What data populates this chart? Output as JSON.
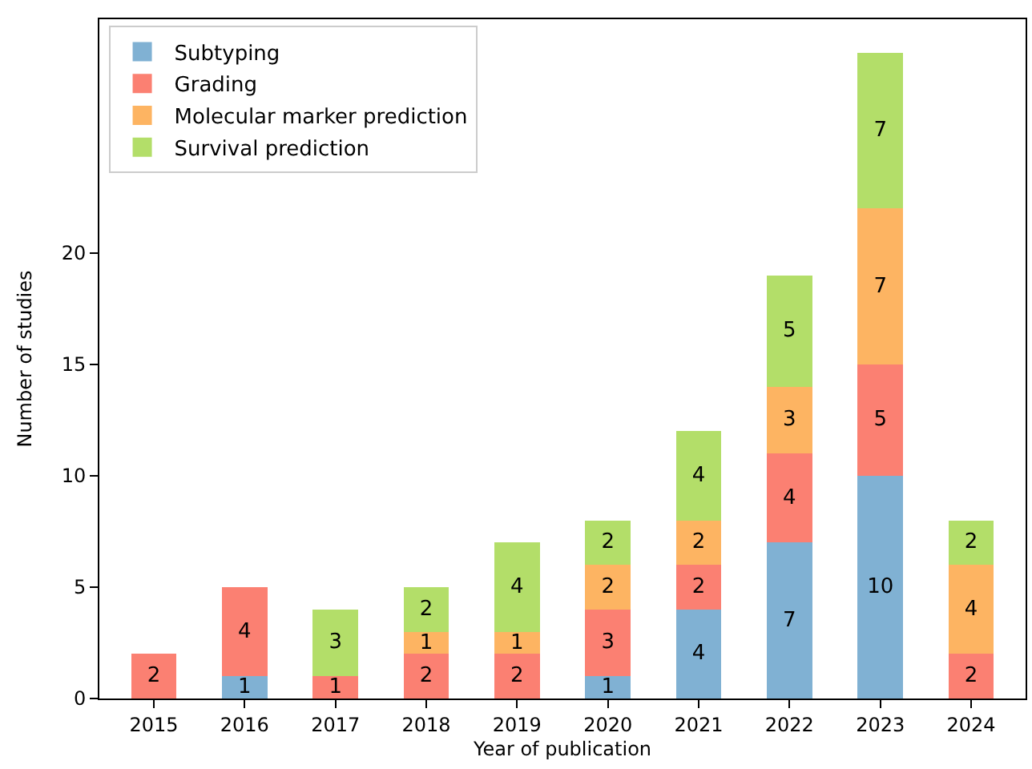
{
  "chart_data": {
    "type": "bar",
    "stacked": true,
    "xlabel": "Year of publication",
    "ylabel": "Number of studies",
    "categories": [
      "2015",
      "2016",
      "2017",
      "2018",
      "2019",
      "2020",
      "2021",
      "2022",
      "2023",
      "2024"
    ],
    "series": [
      {
        "name": "Subtyping",
        "color": "#80b1d3",
        "values": [
          0,
          1,
          0,
          0,
          0,
          1,
          4,
          7,
          10,
          0
        ],
        "value_labels": [
          null,
          "1",
          null,
          null,
          null,
          "1",
          "4",
          "7",
          "10",
          null
        ]
      },
      {
        "name": "Grading",
        "color": "#fb8072",
        "values": [
          2,
          4,
          1,
          2,
          2,
          3,
          2,
          4,
          5,
          2
        ],
        "value_labels": [
          "2",
          "4",
          "1",
          "2",
          "2",
          "3",
          "2",
          "4",
          "5",
          "2"
        ]
      },
      {
        "name": "Molecular marker prediction",
        "color": "#fdb462",
        "values": [
          0,
          0,
          0,
          1,
          1,
          2,
          2,
          3,
          7,
          4
        ],
        "value_labels": [
          null,
          null,
          null,
          "1",
          "1",
          "2",
          "2",
          "3",
          "7",
          "4"
        ]
      },
      {
        "name": "Survival prediction",
        "color": "#b3de69",
        "values": [
          0,
          0,
          3,
          2,
          4,
          2,
          4,
          5,
          7,
          2
        ],
        "value_labels": [
          null,
          null,
          "3",
          "2",
          "4",
          "2",
          "4",
          "5",
          "7",
          "2"
        ]
      }
    ],
    "ylim": [
      0,
      30.5
    ],
    "yticks": [
      0,
      5,
      10,
      15,
      20
    ],
    "legend": "top left"
  }
}
